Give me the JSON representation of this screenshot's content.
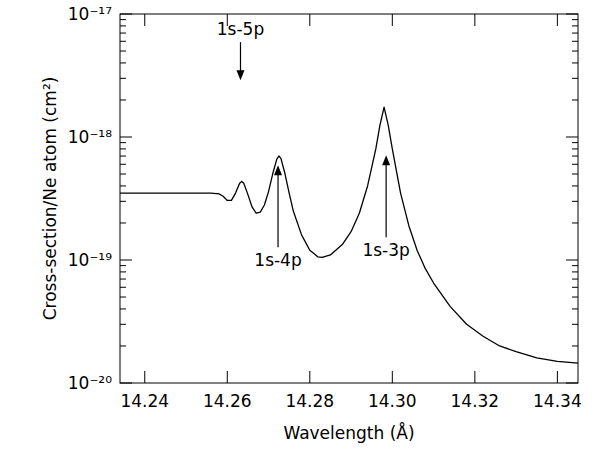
{
  "chart_data": {
    "type": "line",
    "x_label": "Wavelength (Å)",
    "y_label": "Cross-section/Ne atom (cm²)",
    "log": "y",
    "color": "#000000",
    "xlim": [
      14.234,
      14.345
    ],
    "ylim": [
      1e-20,
      1e-17
    ],
    "xticks": [
      14.24,
      14.26,
      14.28,
      {
        "value": 14.3,
        "label": "14.30"
      },
      14.32,
      14.34
    ],
    "yticks": [
      {
        "value": 1e-20,
        "label": "10⁻²⁰"
      },
      {
        "value": 1e-19,
        "label": "10⁻¹⁹"
      },
      {
        "value": 1e-18,
        "label": "10⁻¹⁸"
      },
      {
        "value": 1e-17,
        "label": "10⁻¹⁷"
      }
    ],
    "x": [
      14.234,
      14.24,
      14.25,
      14.256,
      14.258,
      14.259,
      14.26,
      14.261,
      14.262,
      14.263,
      14.2635,
      14.264,
      14.265,
      14.266,
      14.267,
      14.268,
      14.269,
      14.27,
      14.271,
      14.272,
      14.2725,
      14.273,
      14.274,
      14.275,
      14.276,
      14.278,
      14.28,
      14.282,
      14.283,
      14.285,
      14.288,
      14.29,
      14.292,
      14.294,
      14.296,
      14.297,
      14.298,
      14.299,
      14.3,
      14.302,
      14.304,
      14.306,
      14.308,
      14.31,
      14.314,
      14.318,
      14.322,
      14.326,
      14.33,
      14.335,
      14.34,
      14.345
    ],
    "values": [
      3.5e-19,
      3.5e-19,
      3.5e-19,
      3.5e-19,
      3.45e-19,
      3.3e-19,
      3.05e-19,
      3.05e-19,
      3.5e-19,
      4.2e-19,
      4.35e-19,
      4.2e-19,
      3.4e-19,
      2.7e-19,
      2.4e-19,
      2.45e-19,
      2.8e-19,
      3.6e-19,
      5e-19,
      6.6e-19,
      7e-19,
      6.7e-19,
      5e-19,
      3.5e-19,
      2.5e-19,
      1.6e-19,
      1.2e-19,
      1.06e-19,
      1.05e-19,
      1.1e-19,
      1.35e-19,
      1.7e-19,
      2.4e-19,
      4e-19,
      8e-19,
      1.25e-18,
      1.75e-18,
      1.25e-18,
      8e-19,
      3.5e-19,
      1.9e-19,
      1.2e-19,
      8.5e-20,
      6.5e-20,
      4.2e-20,
      3e-20,
      2.4e-20,
      2e-20,
      1.8e-20,
      1.6e-20,
      1.5e-20,
      1.45e-20
    ],
    "annotations": [
      {
        "text": "1s-5p",
        "x": 14.2632,
        "y": 2.9e-18
      },
      {
        "text": "1s-4p",
        "x": 14.2723,
        "y": 5.9e-19
      },
      {
        "text": "1s-3p",
        "x": 14.2985,
        "y": 7.1e-19
      }
    ]
  }
}
